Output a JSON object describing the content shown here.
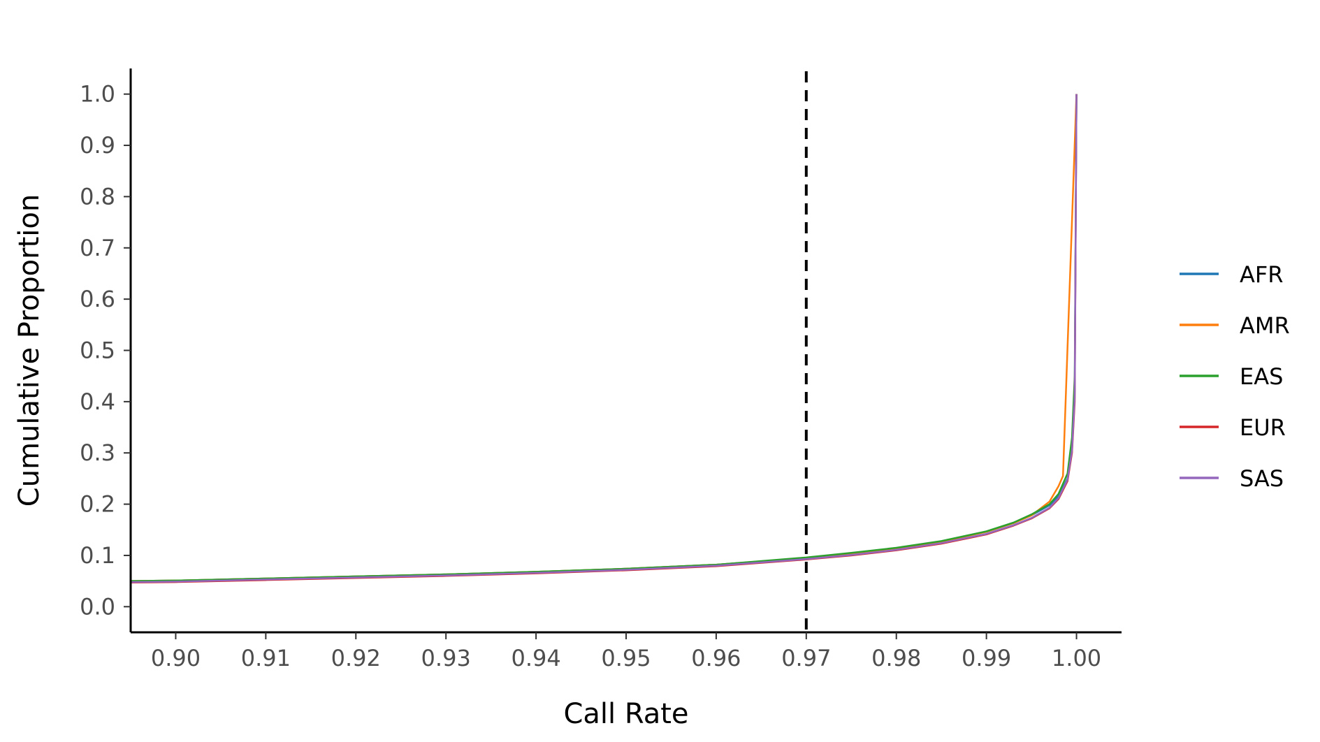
{
  "chart_data": {
    "type": "line",
    "title": "",
    "xlabel": "Call Rate",
    "ylabel": "Cumulative Proportion",
    "xlim": [
      0.895,
      1.005
    ],
    "ylim": [
      -0.05,
      1.05
    ],
    "x_ticks": [
      0.9,
      0.91,
      0.92,
      0.93,
      0.94,
      0.95,
      0.96,
      0.97,
      0.98,
      0.99,
      1.0
    ],
    "x_tick_labels": [
      "0.90",
      "0.91",
      "0.92",
      "0.93",
      "0.94",
      "0.95",
      "0.96",
      "0.97",
      "0.98",
      "0.99",
      "1.00"
    ],
    "y_ticks": [
      0.0,
      0.1,
      0.2,
      0.3,
      0.4,
      0.5,
      0.6,
      0.7,
      0.8,
      0.9,
      1.0
    ],
    "y_tick_labels": [
      "0.0",
      "0.1",
      "0.2",
      "0.3",
      "0.4",
      "0.5",
      "0.6",
      "0.7",
      "0.8",
      "0.9",
      "1.0"
    ],
    "grid": false,
    "legend_position": "right",
    "reference_line": {
      "axis": "x",
      "value": 0.97,
      "style": "dashed",
      "color": "#000000"
    },
    "series": [
      {
        "name": "AFR",
        "color": "#1f77b4",
        "x": [
          0.895,
          0.9,
          0.91,
          0.92,
          0.93,
          0.94,
          0.95,
          0.96,
          0.97,
          0.975,
          0.98,
          0.985,
          0.99,
          0.993,
          0.995,
          0.997,
          0.998,
          0.999,
          0.9995,
          0.9998,
          1.0
        ],
        "y": [
          0.05,
          0.051,
          0.055,
          0.059,
          0.063,
          0.068,
          0.074,
          0.082,
          0.095,
          0.104,
          0.114,
          0.127,
          0.146,
          0.163,
          0.178,
          0.198,
          0.215,
          0.25,
          0.31,
          0.42,
          1.0
        ]
      },
      {
        "name": "AMR",
        "color": "#ff7f0e",
        "x": [
          0.895,
          0.9,
          0.91,
          0.92,
          0.93,
          0.94,
          0.95,
          0.96,
          0.97,
          0.975,
          0.98,
          0.985,
          0.99,
          0.993,
          0.995,
          0.997,
          0.998,
          0.9985,
          1.0
        ],
        "y": [
          0.05,
          0.051,
          0.055,
          0.059,
          0.063,
          0.068,
          0.074,
          0.082,
          0.095,
          0.104,
          0.114,
          0.127,
          0.146,
          0.163,
          0.178,
          0.205,
          0.235,
          0.255,
          1.0
        ]
      },
      {
        "name": "EAS",
        "color": "#2ca02c",
        "x": [
          0.895,
          0.9,
          0.91,
          0.92,
          0.93,
          0.94,
          0.95,
          0.96,
          0.97,
          0.975,
          0.98,
          0.985,
          0.99,
          0.993,
          0.995,
          0.997,
          0.998,
          0.999,
          0.9995,
          0.9998,
          1.0
        ],
        "y": [
          0.05,
          0.051,
          0.055,
          0.059,
          0.063,
          0.068,
          0.074,
          0.082,
          0.096,
          0.105,
          0.115,
          0.128,
          0.147,
          0.164,
          0.18,
          0.2,
          0.22,
          0.26,
          0.33,
          0.45,
          1.0
        ]
      },
      {
        "name": "EUR",
        "color": "#d62728",
        "x": [
          0.895,
          0.9,
          0.91,
          0.92,
          0.93,
          0.94,
          0.95,
          0.96,
          0.97,
          0.975,
          0.98,
          0.985,
          0.99,
          0.993,
          0.995,
          0.997,
          0.998,
          0.999,
          0.9995,
          0.9998,
          1.0
        ],
        "y": [
          0.047,
          0.048,
          0.052,
          0.056,
          0.06,
          0.065,
          0.071,
          0.079,
          0.092,
          0.1,
          0.11,
          0.123,
          0.141,
          0.158,
          0.172,
          0.192,
          0.21,
          0.245,
          0.3,
          0.4,
          1.0
        ]
      },
      {
        "name": "SAS",
        "color": "#9467bd",
        "x": [
          0.895,
          0.9,
          0.91,
          0.92,
          0.93,
          0.94,
          0.95,
          0.96,
          0.97,
          0.975,
          0.98,
          0.985,
          0.99,
          0.993,
          0.995,
          0.997,
          0.998,
          0.999,
          0.9995,
          0.9998,
          1.0
        ],
        "y": [
          0.048,
          0.049,
          0.053,
          0.057,
          0.061,
          0.066,
          0.072,
          0.08,
          0.093,
          0.101,
          0.111,
          0.124,
          0.142,
          0.159,
          0.173,
          0.193,
          0.212,
          0.248,
          0.305,
          0.41,
          1.0
        ]
      }
    ]
  }
}
